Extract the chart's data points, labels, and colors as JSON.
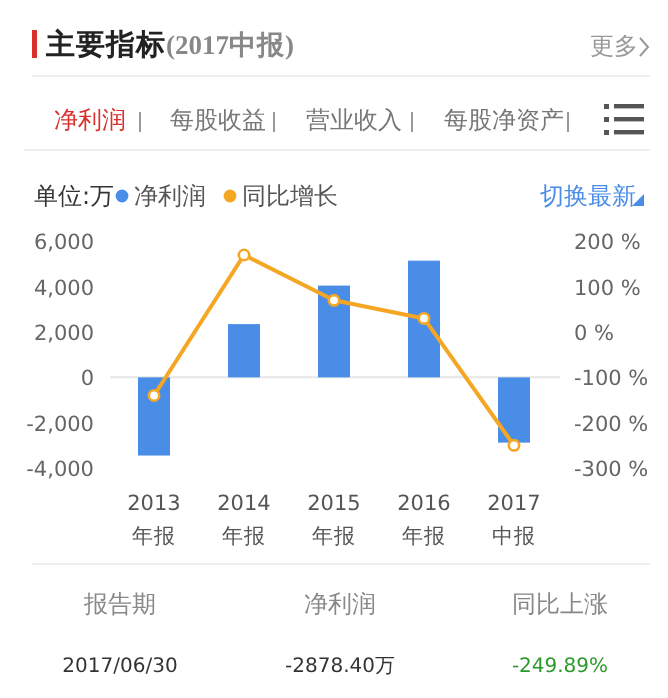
{
  "chart_data": {
    "type": "bar",
    "title": "主要指标",
    "subtitle": "(2017中报)",
    "ylabel": "单位:万",
    "legend": "top left",
    "marker": "circle",
    "categories": [
      "2013\n年报",
      "2014\n年报",
      "2015\n年报",
      "2016\n年报",
      "2017\n中报"
    ],
    "series": [
      {
        "name": "净利润",
        "color": "#4a8de6",
        "values": [
          -3450,
          2350,
          4050,
          5150,
          -2880
        ]
      },
      {
        "name": "同比增长",
        "type": "line",
        "axis": "y2",
        "color": "#f5a623",
        "values": [
          -140,
          170,
          70,
          30,
          -250
        ]
      }
    ],
    "ylim": [
      -4000,
      6000
    ],
    "yticks": [
      {
        "value": 6000,
        "label": "6,000"
      },
      {
        "value": 4000,
        "label": "4,000"
      },
      {
        "value": 2000,
        "label": "2,000"
      },
      0,
      {
        "value": -2000,
        "label": "-2,000"
      },
      {
        "value": -4000,
        "label": "-4,000"
      }
    ],
    "y2lim": [
      -300,
      200
    ],
    "y2ticks": [
      {
        "value": 200,
        "label": "200 %"
      },
      {
        "value": 100,
        "label": "100 %"
      },
      {
        "value": 0,
        "label": "0 %"
      },
      {
        "value": -100,
        "label": "-100 %"
      },
      {
        "value": -200,
        "label": "-200 %"
      },
      {
        "value": -300,
        "label": "-300 %"
      }
    ],
    "annotations": [
      "更多",
      "净利润",
      "每股收益",
      "营业收入",
      "每股净资产",
      "切换最新",
      "报告期",
      "净利润",
      "同比上涨",
      "2017/06/30",
      "-2878.40万",
      "-249.89%"
    ]
  }
}
